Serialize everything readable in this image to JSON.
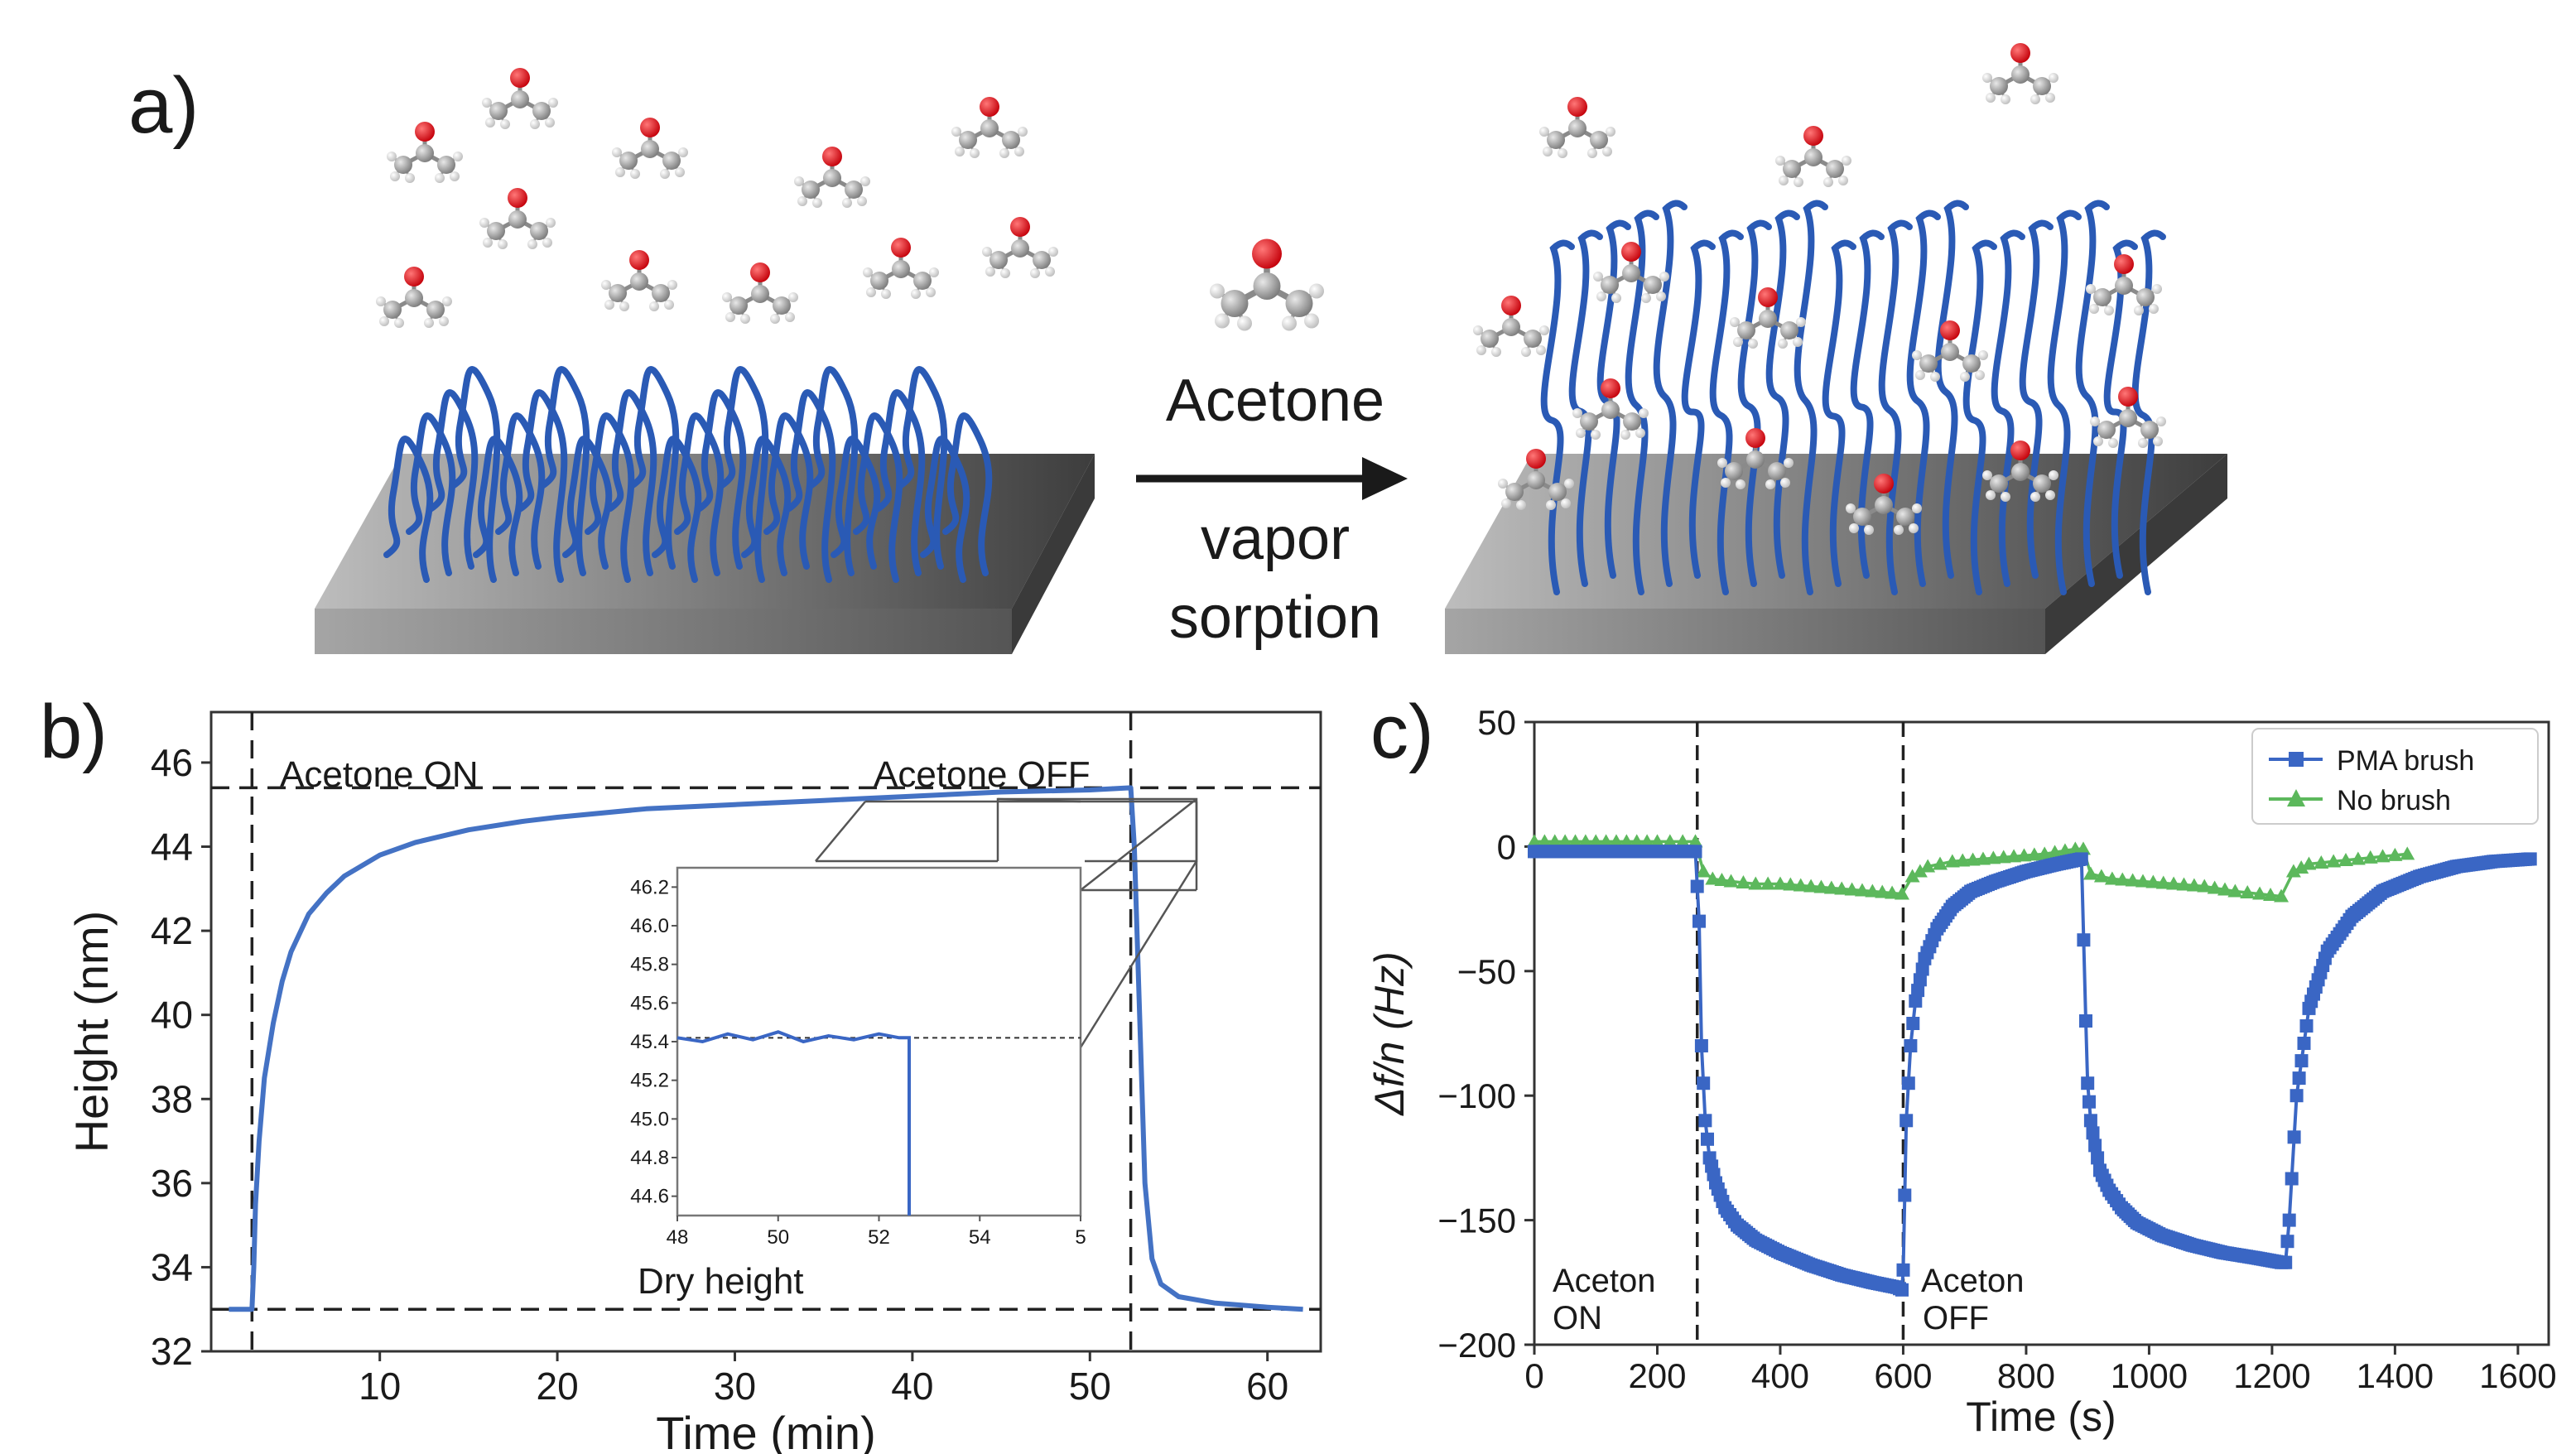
{
  "panel_a": {
    "label": "a)",
    "arrow_top": "Acetone",
    "arrow_bottom_line1": "vapor",
    "arrow_bottom_line2": "sorption"
  },
  "chart_data": [
    {
      "panel": "b)",
      "type": "line",
      "xlabel": "Time (min)",
      "ylabel": "Height (nm)",
      "xlim": [
        0.5,
        63
      ],
      "ylim": [
        32,
        47.2
      ],
      "xticks": [
        10,
        20,
        30,
        40,
        50,
        60
      ],
      "yticks": [
        32,
        34,
        36,
        38,
        40,
        42,
        44,
        46
      ],
      "annotations": [
        "Acetone ON",
        "Acetone OFF",
        "Dry height"
      ],
      "reference_lines": {
        "acetone_on_min": 2.8,
        "acetone_off_min": 52.3,
        "dry_height_nm": 33.0,
        "swollen_height_nm": 45.4
      },
      "series": [
        {
          "name": "Height",
          "color": "#4472c4",
          "x": [
            1.5,
            2.5,
            2.8,
            2.9,
            3.0,
            3.2,
            3.5,
            4,
            4.5,
            5,
            6,
            7,
            8,
            10,
            12,
            15,
            18,
            20,
            25,
            30,
            35,
            40,
            45,
            50,
            52.3,
            52.5,
            52.8,
            53.1,
            53.5,
            54,
            55,
            57,
            60,
            62
          ],
          "y": [
            33.0,
            33.0,
            33.0,
            34.0,
            35.5,
            37.0,
            38.5,
            39.8,
            40.8,
            41.5,
            42.4,
            42.9,
            43.3,
            43.8,
            44.1,
            44.4,
            44.6,
            44.7,
            44.9,
            45.0,
            45.1,
            45.2,
            45.3,
            45.35,
            45.4,
            44.0,
            40.0,
            36.0,
            34.2,
            33.6,
            33.3,
            33.15,
            33.05,
            33.0
          ]
        }
      ],
      "inset": {
        "xlim": [
          48,
          56
        ],
        "ylim": [
          44.5,
          46.3
        ],
        "xticks": [
          48,
          50,
          52,
          54,
          5
        ],
        "yticks": [
          44.6,
          44.8,
          45.0,
          45.2,
          45.4,
          45.6,
          45.8,
          46.0,
          46.2
        ],
        "x": [
          48.0,
          48.5,
          49.0,
          49.5,
          50.0,
          50.5,
          51.0,
          51.5,
          52.0,
          52.4,
          52.6,
          52.6
        ],
        "y": [
          45.42,
          45.4,
          45.44,
          45.41,
          45.45,
          45.4,
          45.43,
          45.41,
          45.44,
          45.42,
          45.42,
          44.5
        ],
        "reference_y": 45.42
      }
    },
    {
      "panel": "c)",
      "type": "scatter",
      "xlabel": "Time (s)",
      "ylabel": "Δf/n (Hz)",
      "xlim": [
        0,
        1650
      ],
      "ylim": [
        -200,
        50
      ],
      "xticks": [
        0,
        200,
        400,
        600,
        800,
        1000,
        1200,
        1400,
        1600
      ],
      "yticks": [
        50,
        0,
        -50,
        -100,
        -150,
        -200
      ],
      "annotations": [
        {
          "line1": "Aceton",
          "line2": "ON"
        },
        {
          "line1": "Aceton",
          "line2": "OFF"
        }
      ],
      "reference_lines_x": [
        265,
        600
      ],
      "legend": {
        "position": "top-right",
        "entries": [
          "PMA brush",
          "No brush"
        ]
      },
      "series": [
        {
          "name": "PMA brush",
          "color": "#3a66c4",
          "marker": "square",
          "x": [
            0,
            100,
            200,
            262,
            268,
            272,
            278,
            285,
            295,
            310,
            330,
            360,
            400,
            450,
            500,
            550,
            590,
            598,
            600,
            605,
            612,
            620,
            635,
            655,
            680,
            710,
            750,
            800,
            850,
            890,
            897,
            900,
            905,
            912,
            920,
            935,
            955,
            980,
            1020,
            1070,
            1120,
            1170,
            1215,
            1222,
            1228,
            1240,
            1260,
            1290,
            1330,
            1380,
            1440,
            1500,
            1560,
            1620
          ],
          "y": [
            -2,
            -2,
            -2,
            -2,
            -30,
            -80,
            -110,
            -125,
            -135,
            -145,
            -152,
            -158,
            -163,
            -168,
            -172,
            -175,
            -177,
            -178,
            -170,
            -110,
            -80,
            -62,
            -45,
            -33,
            -24,
            -18,
            -14,
            -10,
            -7,
            -5,
            -70,
            -95,
            -110,
            -120,
            -130,
            -138,
            -145,
            -151,
            -156,
            -160,
            -163,
            -165,
            -167,
            -167,
            -150,
            -100,
            -65,
            -42,
            -28,
            -18,
            -12,
            -8,
            -6,
            -5
          ]
        },
        {
          "name": "No brush",
          "color": "#5cb85c",
          "marker": "triangle",
          "x": [
            0,
            50,
            100,
            150,
            200,
            262,
            275,
            290,
            320,
            360,
            400,
            450,
            500,
            550,
            598,
            615,
            640,
            680,
            730,
            780,
            830,
            880,
            893,
            905,
            940,
            990,
            1040,
            1090,
            1140,
            1180,
            1215,
            1235,
            1260,
            1300,
            1340,
            1380,
            1420
          ],
          "y": [
            2,
            2,
            2,
            2,
            2,
            2,
            -10,
            -13,
            -14,
            -15,
            -15,
            -16,
            -17,
            -18,
            -19,
            -12,
            -8,
            -6,
            -5,
            -4,
            -3,
            -1,
            -1,
            -11,
            -13,
            -14,
            -15,
            -16,
            -18,
            -19,
            -20,
            -10,
            -7,
            -6,
            -5,
            -4,
            -3
          ]
        }
      ]
    }
  ]
}
